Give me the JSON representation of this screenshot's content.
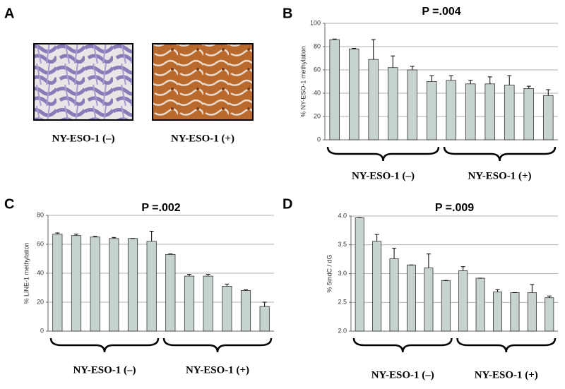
{
  "panel_a": {
    "panel": "A",
    "images": [
      "NY-ESO-1 (–)",
      "NY-ESO-1 (+)"
    ]
  },
  "chart_data": [
    {
      "type": "bar",
      "panel": "B",
      "title": "P =.004",
      "y_label": "% NY-ESO-1 methylation",
      "categories": [
        null,
        null,
        null,
        null,
        null,
        null,
        null,
        null,
        null,
        null,
        null,
        null
      ],
      "values": [
        86,
        78,
        69,
        62,
        60,
        50,
        51,
        48,
        48,
        47,
        44,
        38
      ],
      "errors": [
        0.5,
        0.5,
        17,
        10,
        3,
        5,
        4,
        3,
        6,
        8,
        2,
        5
      ],
      "groups": [
        "NY-ESO-1 (–)",
        "NY-ESO-1 (+)"
      ],
      "color": "#c7d3cf",
      "ylim": [
        0,
        100
      ],
      "yticks": [
        0,
        20,
        40,
        60,
        80,
        100
      ],
      "grid": true
    },
    {
      "type": "bar",
      "panel": "C",
      "title": "P =.002",
      "y_label": "% LINE-1 methylation",
      "categories": [
        null,
        null,
        null,
        null,
        null,
        null,
        null,
        null,
        null,
        null,
        null,
        null
      ],
      "values": [
        67,
        66,
        65,
        64,
        64,
        62,
        53,
        38,
        38,
        31,
        28,
        17
      ],
      "errors": [
        0.8,
        1,
        0.5,
        0.7,
        0,
        7,
        0.3,
        1.2,
        1.2,
        1.5,
        0.5,
        3
      ],
      "groups": [
        "NY-ESO-1 (–)",
        "NY-ESO-1 (+)"
      ],
      "color": "#c7d3cf",
      "ylim": [
        0,
        80
      ],
      "yticks": [
        0,
        20,
        40,
        60,
        80
      ],
      "grid": true
    },
    {
      "type": "bar",
      "panel": "D",
      "title": "P =.009",
      "y_label": "% 5mdC / dG",
      "categories": [
        null,
        null,
        null,
        null,
        null,
        null,
        null,
        null,
        null,
        null,
        null,
        null
      ],
      "values": [
        3.97,
        3.56,
        3.26,
        3.15,
        3.1,
        2.88,
        3.05,
        2.92,
        2.68,
        2.67,
        2.67,
        2.58
      ],
      "errors": [
        0,
        0.12,
        0.18,
        0,
        0.24,
        0,
        0.07,
        0,
        0.04,
        0,
        0.14,
        0.03
      ],
      "groups": [
        "NY-ESO-1 (–)",
        "NY-ESO-1 (+)"
      ],
      "color": "#c7d3cf",
      "ylim": [
        2,
        4
      ],
      "yticks": [
        {
          "value": 2,
          "label": "2.0"
        },
        {
          "value": 2.5,
          "label": "2.5"
        },
        {
          "value": 3,
          "label": "3.0"
        },
        {
          "value": 3.5,
          "label": "3.5"
        },
        {
          "value": 4,
          "label": "4.0"
        }
      ],
      "grid": true
    }
  ]
}
